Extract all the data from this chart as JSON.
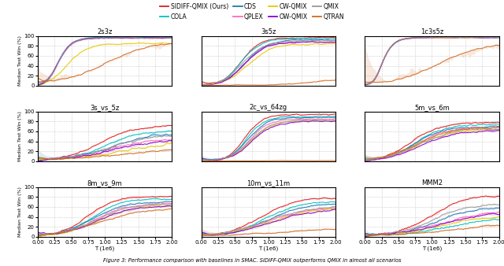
{
  "subplots": [
    {
      "title": "2s3z",
      "row": 0,
      "col": 0
    },
    {
      "title": "3s5z",
      "row": 0,
      "col": 1
    },
    {
      "title": "1c3s5z",
      "row": 0,
      "col": 2
    },
    {
      "title": "3s_vs_5z",
      "row": 1,
      "col": 0
    },
    {
      "title": "2c_vs_64zg",
      "row": 1,
      "col": 1
    },
    {
      "title": "5m_vs_6m",
      "row": 1,
      "col": 2
    },
    {
      "title": "8m_vs_9m",
      "row": 2,
      "col": 0
    },
    {
      "title": "10m_vs_11m",
      "row": 2,
      "col": 1
    },
    {
      "title": "MMM2",
      "row": 2,
      "col": 2
    }
  ],
  "legend_entries": [
    {
      "label": "SIDIFF-QMIX (Ours)",
      "color": "#e31a1c"
    },
    {
      "label": "COLA",
      "color": "#00c0c0"
    },
    {
      "label": "CDS",
      "color": "#1f78b4"
    },
    {
      "label": "QPLEX",
      "color": "#ff69b4"
    },
    {
      "label": "CW-QMIX",
      "color": "#e6c800"
    },
    {
      "label": "OW-QMIX",
      "color": "#8b00d4"
    },
    {
      "label": "QMIX",
      "color": "#999999"
    },
    {
      "label": "QTRAN",
      "color": "#d2691e"
    }
  ],
  "xlabel": "T (1e6)",
  "ylabel": "Median Test Win (%)",
  "xlim": [
    0.0,
    2.0
  ],
  "ylim": [
    0,
    100
  ],
  "yticks": [
    0,
    20,
    40,
    60,
    80,
    100
  ],
  "caption": "Figure 3: Performance comparison with baselines in SMAC. SIDIFF-QMIX outperforms QMIX in almost all scenarios"
}
